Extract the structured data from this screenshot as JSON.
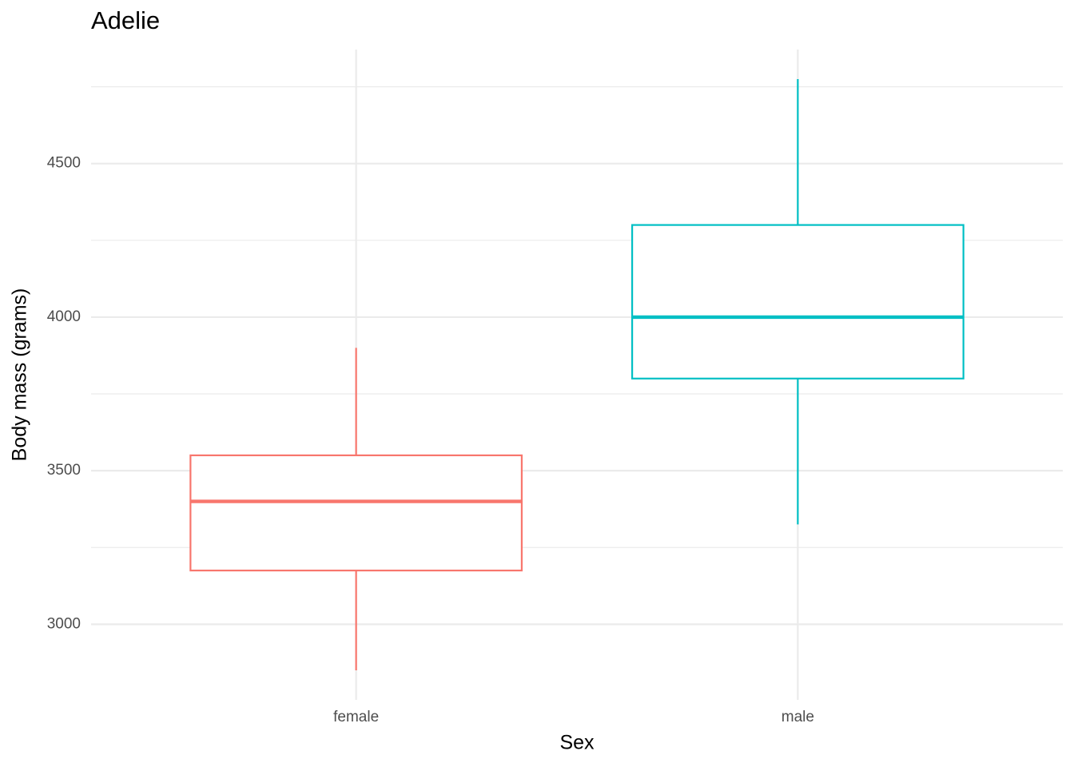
{
  "chart_data": {
    "type": "boxplot",
    "title": "Adelie",
    "x_label": "Sex",
    "y_label": "Body mass (grams)",
    "categories": [
      "female",
      "male"
    ],
    "colors": [
      "#F8766D",
      "#00BFC4"
    ],
    "min": [
      2850,
      3325
    ],
    "q1": [
      3175,
      3800
    ],
    "median": [
      3400,
      4000
    ],
    "q3": [
      3550,
      4300
    ],
    "max": [
      3900,
      4775
    ],
    "ylim": [
      2753.75,
      4871.25
    ],
    "yticks": [
      3000,
      3500,
      4000,
      4500
    ],
    "minor_yticks": [
      3250,
      3750,
      4250,
      4750
    ],
    "grid": true
  }
}
